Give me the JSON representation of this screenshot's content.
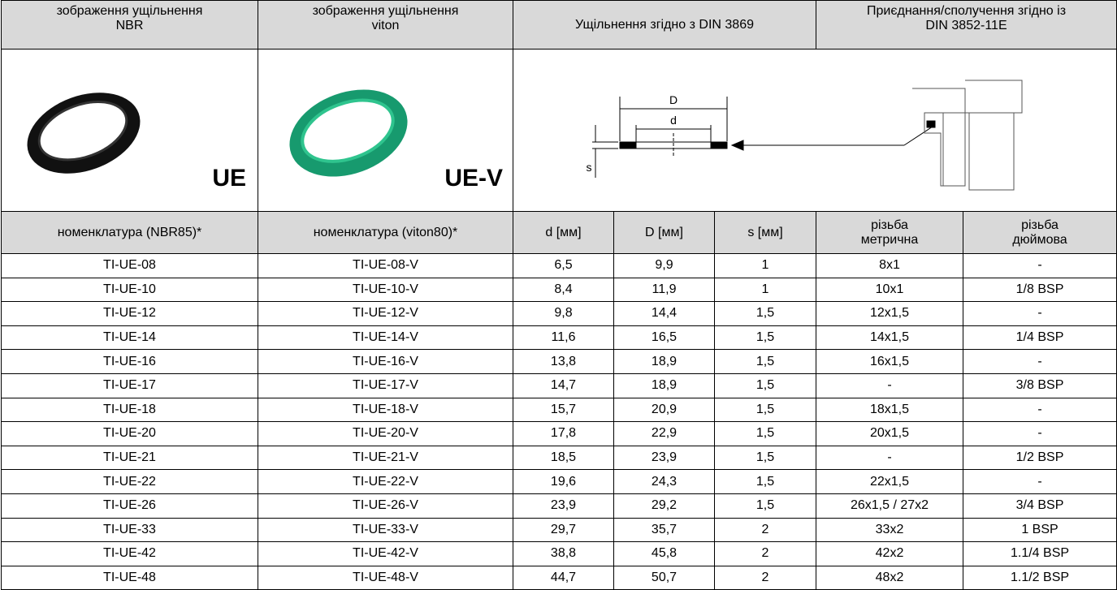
{
  "header": [
    "зображення ущільнення\nNBR",
    "зображення ущільнення\nviton",
    "Ущільнення згідно з DIN 3869",
    "Приєднання/сполучення  згідно із\nDIN 3852-11E"
  ],
  "images": {
    "nbr_label": "UE",
    "viton_label": "UE-V",
    "dimension_labels": [
      "D",
      "d",
      "s"
    ]
  },
  "columns": [
    "номенклатура (NBR85)*",
    "номенклатура (viton80)*",
    "d [мм]",
    "D [мм]",
    "s [мм]",
    "різьба\nметрична",
    "різьба\nдюймова"
  ],
  "rows": [
    [
      "TI-UE-08",
      "TI-UE-08-V",
      "6,5",
      "9,9",
      "1",
      "8x1",
      "-"
    ],
    [
      "TI-UE-10",
      "TI-UE-10-V",
      "8,4",
      "11,9",
      "1",
      "10x1",
      "1/8 BSP"
    ],
    [
      "TI-UE-12",
      "TI-UE-12-V",
      "9,8",
      "14,4",
      "1,5",
      "12x1,5",
      "-"
    ],
    [
      "TI-UE-14",
      "TI-UE-14-V",
      "11,6",
      "16,5",
      "1,5",
      "14x1,5",
      "1/4 BSP"
    ],
    [
      "TI-UE-16",
      "TI-UE-16-V",
      "13,8",
      "18,9",
      "1,5",
      "16x1,5",
      "-"
    ],
    [
      "TI-UE-17",
      "TI-UE-17-V",
      "14,7",
      "18,9",
      "1,5",
      "-",
      "3/8 BSP"
    ],
    [
      "TI-UE-18",
      "TI-UE-18-V",
      "15,7",
      "20,9",
      "1,5",
      "18x1,5",
      "-"
    ],
    [
      "TI-UE-20",
      "TI-UE-20-V",
      "17,8",
      "22,9",
      "1,5",
      "20x1,5",
      "-"
    ],
    [
      "TI-UE-21",
      "TI-UE-21-V",
      "18,5",
      "23,9",
      "1,5",
      "-",
      "1/2 BSP"
    ],
    [
      "TI-UE-22",
      "TI-UE-22-V",
      "19,6",
      "24,3",
      "1,5",
      "22x1,5",
      "-"
    ],
    [
      "TI-UE-26",
      "TI-UE-26-V",
      "23,9",
      "29,2",
      "1,5",
      "26x1,5 / 27x2",
      "3/4 BSP"
    ],
    [
      "TI-UE-33",
      "TI-UE-33-V",
      "29,7",
      "35,7",
      "2",
      "33x2",
      "1 BSP"
    ],
    [
      "TI-UE-42",
      "TI-UE-42-V",
      "38,8",
      "45,8",
      "2",
      "42x2",
      "1.1/4 BSP"
    ],
    [
      "TI-UE-48",
      "TI-UE-48-V",
      "44,7",
      "50,7",
      "2",
      "48x2",
      "1.1/2 BSP"
    ]
  ]
}
